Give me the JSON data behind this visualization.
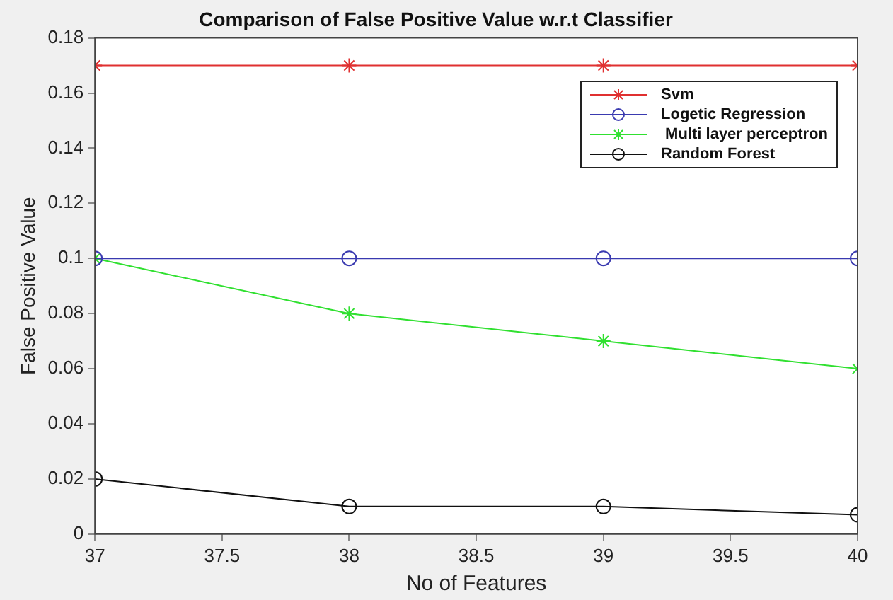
{
  "chart_data": {
    "type": "line",
    "title": "Comparison of False Positive Value w.r.t Classifier",
    "xlabel": "No of Features",
    "ylabel": "False Positive Value",
    "x": [
      37,
      38,
      39,
      40
    ],
    "series": [
      {
        "name": "Svm",
        "color": "#e03030",
        "marker": "cross",
        "values": [
          0.17,
          0.17,
          0.17,
          0.17
        ]
      },
      {
        "name": "Logetic Regression",
        "color": "#3a3ab0",
        "marker": "circle",
        "values": [
          0.1,
          0.1,
          0.1,
          0.1
        ]
      },
      {
        "name": " Multi layer perceptron",
        "color": "#30e030",
        "marker": "cross",
        "values": [
          0.1,
          0.08,
          0.07,
          0.06
        ]
      },
      {
        "name": "Random Forest",
        "color": "#101010",
        "marker": "circle",
        "values": [
          0.02,
          0.01,
          0.01,
          0.007
        ]
      }
    ],
    "xlim": [
      37,
      40
    ],
    "xticks": [
      37,
      37.5,
      38,
      38.5,
      39,
      39.5,
      40
    ],
    "ylim": [
      0,
      0.18
    ],
    "yticks": [
      0,
      0.02,
      0.04,
      0.06,
      0.08,
      0.1,
      0.12,
      0.14,
      0.16,
      0.18
    ],
    "grid": false,
    "legend": "top right",
    "line_style": "solid"
  }
}
